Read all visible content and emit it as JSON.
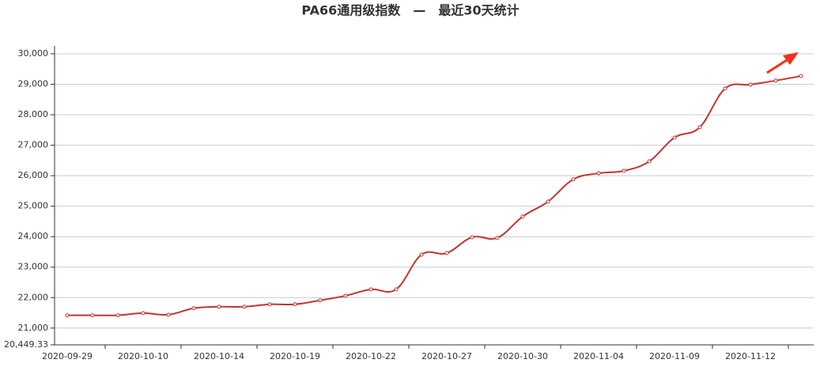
{
  "chart_data": {
    "type": "line",
    "title": "PA66通用级指数　—　最近30天统计",
    "categories": [
      "2020-09-29",
      null,
      null,
      "2020-10-10",
      null,
      null,
      "2020-10-14",
      null,
      null,
      "2020-10-19",
      null,
      null,
      "2020-10-22",
      null,
      null,
      "2020-10-27",
      null,
      null,
      "2020-10-30",
      null,
      null,
      "2020-11-04",
      null,
      null,
      "2020-11-09",
      null,
      null,
      "2020-11-12",
      null,
      null
    ],
    "values": [
      21420,
      21420,
      21420,
      21490,
      21440,
      21650,
      21700,
      21700,
      21780,
      21780,
      21910,
      22060,
      22270,
      22270,
      23410,
      23460,
      23980,
      23960,
      24660,
      25150,
      25880,
      26080,
      26160,
      26470,
      27250,
      27590,
      28860,
      28990,
      29120,
      29270
    ],
    "color": "#c23531",
    "ylim": [
      20449.33,
      30260
    ],
    "yticks": [
      {
        "value": 20449.33,
        "label": "20,449.33"
      },
      {
        "value": 21000,
        "label": "21,000"
      },
      {
        "value": 22000,
        "label": "22,000"
      },
      {
        "value": 23000,
        "label": "23,000"
      },
      {
        "value": 24000,
        "label": "24,000"
      },
      {
        "value": 25000,
        "label": "25,000"
      },
      {
        "value": 26000,
        "label": "26,000"
      },
      {
        "value": 27000,
        "label": "27,000"
      },
      {
        "value": 28000,
        "label": "28,000"
      },
      {
        "value": 29000,
        "label": "29,000"
      },
      {
        "value": 30000,
        "label": "30,000"
      }
    ],
    "grid": true
  }
}
